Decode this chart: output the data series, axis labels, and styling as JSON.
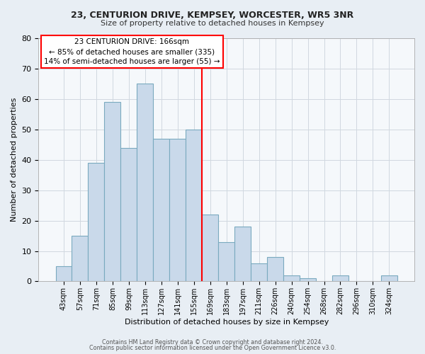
{
  "title1": "23, CENTURION DRIVE, KEMPSEY, WORCESTER, WR5 3NR",
  "title2": "Size of property relative to detached houses in Kempsey",
  "xlabel": "Distribution of detached houses by size in Kempsey",
  "ylabel": "Number of detached properties",
  "bar_labels": [
    "43sqm",
    "57sqm",
    "71sqm",
    "85sqm",
    "99sqm",
    "113sqm",
    "127sqm",
    "141sqm",
    "155sqm",
    "169sqm",
    "183sqm",
    "197sqm",
    "211sqm",
    "226sqm",
    "240sqm",
    "254sqm",
    "268sqm",
    "282sqm",
    "296sqm",
    "310sqm",
    "324sqm"
  ],
  "bar_values": [
    5,
    15,
    39,
    59,
    44,
    65,
    47,
    47,
    50,
    22,
    13,
    18,
    6,
    8,
    2,
    1,
    0,
    2,
    0,
    0,
    2
  ],
  "bar_color": "#c9d9ea",
  "bar_edge_color": "#7aaabf",
  "ref_line_index": 8.5,
  "reference_line_color": "red",
  "ylim": [
    0,
    80
  ],
  "yticks": [
    0,
    10,
    20,
    30,
    40,
    50,
    60,
    70,
    80
  ],
  "annotation_title": "23 CENTURION DRIVE: 166sqm",
  "annotation_line1": "← 85% of detached houses are smaller (335)",
  "annotation_line2": "14% of semi-detached houses are larger (55) →",
  "footer1": "Contains HM Land Registry data © Crown copyright and database right 2024.",
  "footer2": "Contains public sector information licensed under the Open Government Licence v3.0.",
  "bg_color": "#e8eef4",
  "plot_bg_color": "#f5f8fb",
  "grid_color": "#d0d8e0"
}
